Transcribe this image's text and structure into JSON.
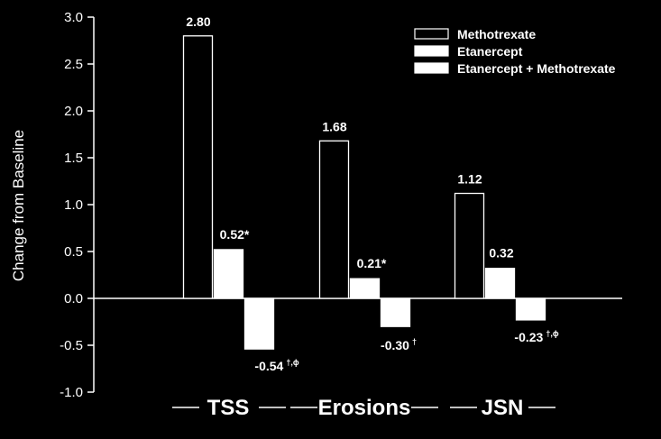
{
  "chart_data": {
    "type": "bar",
    "title": "",
    "xlabel": "",
    "ylabel": "Change from Baseline",
    "ylim": [
      -1.0,
      3.0
    ],
    "yticks": [
      "3.0",
      "2.5",
      "2.0",
      "1.5",
      "1.0",
      "0.5",
      "0.0",
      "-0.5",
      "-1.0"
    ],
    "grid": false,
    "legend_position": "top-right",
    "categories": [
      "TSS",
      "Erosions",
      "JSN"
    ],
    "series": [
      {
        "name": "Methotrexate",
        "values": [
          2.8,
          1.68,
          1.12
        ],
        "labels": [
          "2.80",
          "1.68",
          "1.12"
        ],
        "annotations": [
          "",
          "",
          ""
        ],
        "style": "outline"
      },
      {
        "name": "Etanercept",
        "values": [
          0.52,
          0.21,
          0.32
        ],
        "labels": [
          "0.52",
          "0.21",
          "0.32"
        ],
        "annotations": [
          "*",
          "*",
          ""
        ],
        "style": "solid"
      },
      {
        "name": "Etanercept + Methotrexate",
        "values": [
          -0.54,
          -0.3,
          -0.23
        ],
        "labels": [
          "-0.54",
          "-0.30",
          "-0.23"
        ],
        "annotations": [
          "†,ϕ",
          "†",
          "†,ϕ"
        ],
        "style": "solid"
      }
    ]
  },
  "colors": {
    "background": "#000000",
    "bar_fill": "#ffffff",
    "bar_outline": "#ffffff",
    "text": "#ffffff"
  }
}
